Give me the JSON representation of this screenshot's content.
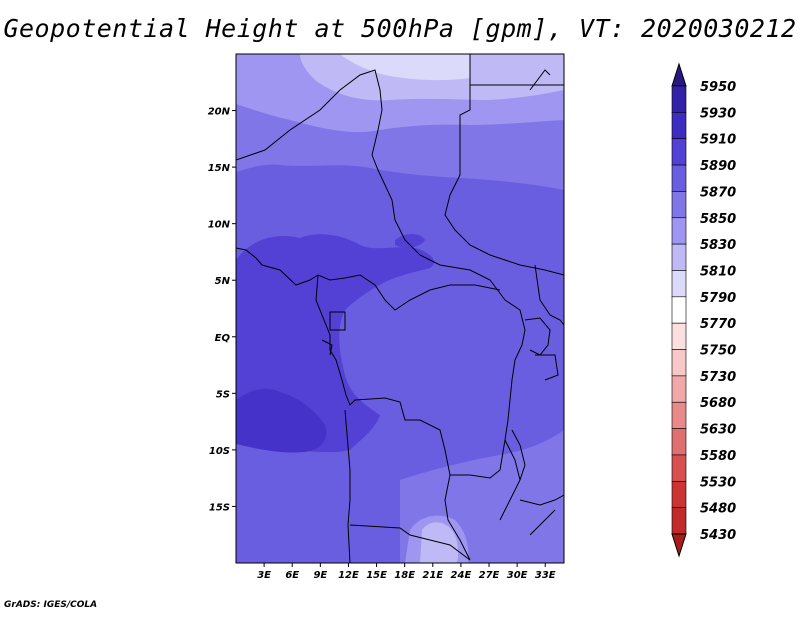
{
  "title": "Geopotential Height at 500hPa [gpm], VT: 2020030212",
  "credit": "GrADS: IGES/COLA",
  "map": {
    "lon_range": [
      0,
      35
    ],
    "lat_range": [
      -20,
      25
    ],
    "lon_ticks": [
      "3E",
      "6E",
      "9E",
      "12E",
      "15E",
      "18E",
      "21E",
      "24E",
      "27E",
      "30E",
      "33E"
    ],
    "lat_ticks": [
      "20N",
      "15N",
      "10N",
      "5N",
      "EQ",
      "5S",
      "10S",
      "15S"
    ],
    "colors": {
      "c5890": "#5340d4",
      "c5870": "#6a5ee0",
      "c5850": "#8076e8",
      "c5830": "#9e96f0",
      "c5810": "#bfbaf5",
      "c5790": "#dcdafa",
      "c5910": "#4532c8"
    }
  },
  "colorbar": {
    "labels": [
      "5950",
      "5930",
      "5910",
      "5890",
      "5870",
      "5850",
      "5830",
      "5810",
      "5790",
      "5770",
      "5750",
      "5730",
      "5680",
      "5630",
      "5580",
      "5530",
      "5480",
      "5430"
    ],
    "colors": [
      "#2a1880",
      "#3222a8",
      "#3d2cc0",
      "#5340d4",
      "#6a5ee0",
      "#8076e8",
      "#9e96f0",
      "#bfbaf5",
      "#dcdafa",
      "#ffffff",
      "#fce0e0",
      "#f8c8c8",
      "#f0a8a8",
      "#e88a8a",
      "#e07070",
      "#d85050",
      "#cc3333",
      "#c02a2a",
      "#a81c1c"
    ]
  }
}
